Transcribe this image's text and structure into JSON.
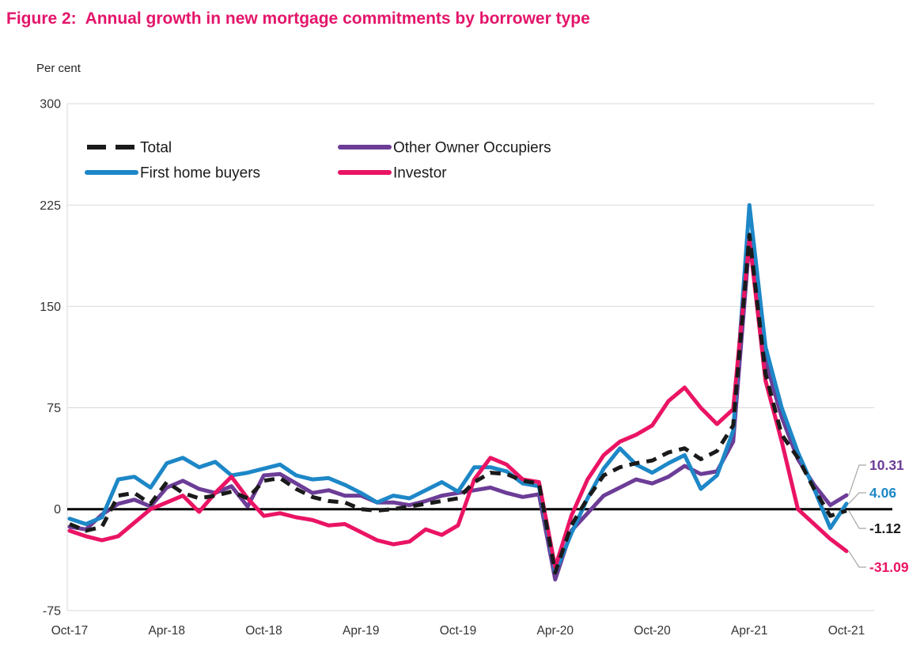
{
  "chart_data": {
    "type": "line",
    "title": "Figure 2:  Annual growth in new mortgage commitments by borrower type",
    "ylabel": "Per cent",
    "ylim": [
      -75,
      300
    ],
    "yticks": [
      300,
      225,
      150,
      75,
      0,
      -75
    ],
    "x_tick_every": 6,
    "grid": "horizontal",
    "legend_position": "top-left-inside",
    "draw_order": [
      2,
      1,
      3,
      0
    ],
    "x": [
      "Oct-17",
      "Nov-17",
      "Dec-17",
      "Jan-18",
      "Feb-18",
      "Mar-18",
      "Apr-18",
      "May-18",
      "Jun-18",
      "Jul-18",
      "Aug-18",
      "Sep-18",
      "Oct-18",
      "Nov-18",
      "Dec-18",
      "Jan-19",
      "Feb-19",
      "Mar-19",
      "Apr-19",
      "May-19",
      "Jun-19",
      "Jul-19",
      "Aug-19",
      "Sep-19",
      "Oct-19",
      "Nov-19",
      "Dec-19",
      "Jan-20",
      "Feb-20",
      "Mar-20",
      "Apr-20",
      "May-20",
      "Jun-20",
      "Jul-20",
      "Aug-20",
      "Sep-20",
      "Oct-20",
      "Nov-20",
      "Dec-20",
      "Jan-21",
      "Feb-21",
      "Mar-21",
      "Apr-21",
      "May-21",
      "Jun-21",
      "Jul-21",
      "Aug-21",
      "Sep-21",
      "Oct-21"
    ],
    "series": [
      {
        "name": "Total",
        "color": "#1a1a1a",
        "style": "dashed",
        "end_label": "-1.12",
        "values": [
          -11,
          -16,
          -13,
          10,
          12,
          4,
          20,
          12,
          8,
          10,
          13,
          8,
          21,
          23,
          15,
          9,
          6,
          5,
          0,
          -1,
          0,
          2,
          4,
          6,
          8,
          20,
          27,
          26,
          21,
          19,
          -47,
          -12,
          8,
          25,
          31,
          34,
          36,
          42,
          45,
          37,
          43,
          62,
          203,
          100,
          55,
          38,
          15,
          -5,
          -1.12
        ]
      },
      {
        "name": "First home buyers",
        "color": "#1d87c7",
        "style": "solid",
        "end_label": "4.06",
        "values": [
          -7,
          -11,
          -6,
          22,
          24,
          16,
          34,
          38,
          31,
          35,
          25,
          27,
          30,
          33,
          25,
          22,
          23,
          18,
          12,
          5,
          10,
          8,
          14,
          20,
          13,
          31,
          31,
          28,
          19,
          17,
          -47,
          -18,
          8,
          30,
          45,
          33,
          27,
          34,
          40,
          15,
          25,
          58,
          225,
          120,
          75,
          42,
          15,
          -14,
          4.06
        ]
      },
      {
        "name": "Other Owner Occupiers",
        "color": "#6c3d97",
        "style": "solid",
        "end_label": "10.31",
        "values": [
          -13,
          -15,
          -4,
          4,
          7,
          2,
          16,
          21,
          15,
          12,
          17,
          2,
          25,
          26,
          19,
          12,
          14,
          10,
          10,
          5,
          5,
          3,
          6,
          10,
          12,
          14,
          16,
          12,
          9,
          11,
          -52,
          -16,
          -3,
          10,
          16,
          22,
          19,
          24,
          32,
          26,
          28,
          50,
          198,
          110,
          68,
          37,
          18,
          3,
          10.31
        ]
      },
      {
        "name": "Investor",
        "color": "#ea1464",
        "style": "solid",
        "end_label": "-31.09",
        "values": [
          -16,
          -20,
          -23,
          -20,
          -10,
          0,
          5,
          10,
          -2,
          12,
          24,
          8,
          -5,
          -3,
          -6,
          -8,
          -12,
          -11,
          -17,
          -23,
          -26,
          -24,
          -15,
          -19,
          -12,
          22,
          38,
          33,
          22,
          20,
          -43,
          -5,
          22,
          40,
          50,
          55,
          62,
          80,
          90,
          75,
          63,
          74,
          200,
          95,
          50,
          0,
          -11,
          -22,
          -31.09
        ]
      }
    ]
  },
  "colors": {
    "title": "#e4156a",
    "grid": "#d9d9d9",
    "axis": "#000000",
    "leader": "#a6a6a6",
    "tick_text": "#333333",
    "legend_text": "#1a1a1a"
  }
}
